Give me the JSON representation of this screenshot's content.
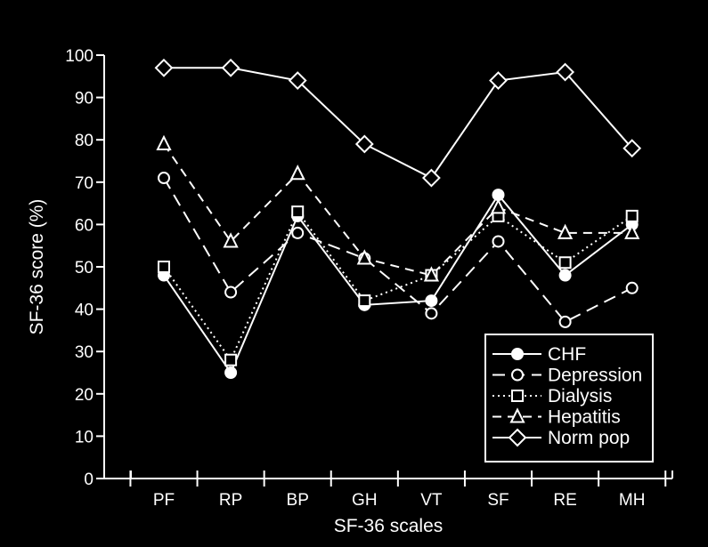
{
  "chart_data": {
    "type": "line",
    "xlabel": "SF-36 scales",
    "ylabel": "SF-36 score (%)",
    "categories": [
      "PF",
      "RP",
      "BP",
      "GH",
      "VT",
      "SF",
      "RE",
      "MH"
    ],
    "ylim": [
      0,
      100
    ],
    "yticks": [
      "0",
      "10",
      "20",
      "30",
      "40",
      "50",
      "60",
      "70",
      "80",
      "90",
      "100"
    ],
    "grid": false,
    "legend_position": "bottom-right",
    "series": [
      {
        "name": "CHF",
        "marker": "filled-circle",
        "line_style": "solid",
        "values": [
          48,
          25,
          62,
          41,
          42,
          67,
          48,
          60
        ]
      },
      {
        "name": "Depression",
        "marker": "open-circle",
        "line_style": "long-dash",
        "values": [
          71,
          44,
          58,
          52,
          39,
          56,
          37,
          45
        ]
      },
      {
        "name": "Dialysis",
        "marker": "open-square",
        "line_style": "dotted",
        "values": [
          50,
          28,
          63,
          42,
          48,
          62,
          51,
          62
        ]
      },
      {
        "name": "Hepatitis",
        "marker": "open-triangle",
        "line_style": "dash",
        "values": [
          79,
          56,
          72,
          52,
          48,
          64,
          58,
          58
        ]
      },
      {
        "name": "Norm pop",
        "marker": "open-diamond",
        "line_style": "solid",
        "values": [
          97,
          97,
          94,
          79,
          71,
          94,
          96,
          78
        ]
      }
    ],
    "colors": {
      "background": "#000000",
      "foreground": "#ffffff"
    }
  }
}
